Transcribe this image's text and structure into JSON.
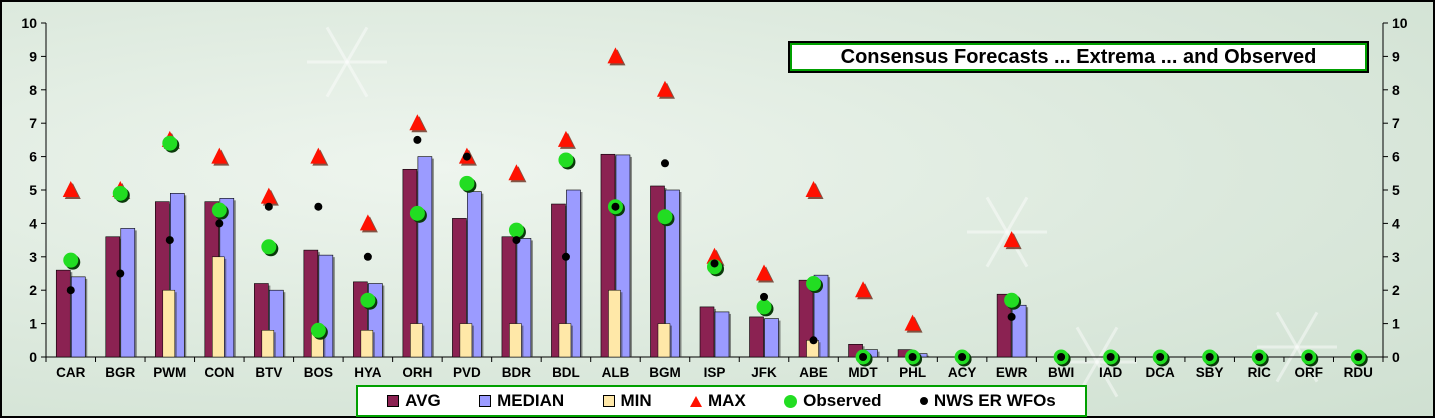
{
  "chart_data": {
    "type": "bar",
    "title": "Consensus Forecasts ... Extrema ... and Observed",
    "categories": [
      "CAR",
      "BGR",
      "PWM",
      "CON",
      "BTV",
      "BOS",
      "HYA",
      "ORH",
      "PVD",
      "BDR",
      "BDL",
      "ALB",
      "BGM",
      "ISP",
      "JFK",
      "ABE",
      "MDT",
      "PHL",
      "ACY",
      "EWR",
      "BWI",
      "IAD",
      "DCA",
      "SBY",
      "RIC",
      "ORF",
      "RDU"
    ],
    "ylim": [
      0,
      10
    ],
    "yticks": [
      "0",
      "1",
      "2",
      "3",
      "4",
      "5",
      "6",
      "7",
      "8",
      "9",
      "10"
    ],
    "series": [
      {
        "name": "AVG",
        "type": "bar",
        "color": "#8b2252",
        "values": [
          2.6,
          3.6,
          4.65,
          4.65,
          2.2,
          3.2,
          2.25,
          5.62,
          4.15,
          3.6,
          4.58,
          6.07,
          5.12,
          1.5,
          1.2,
          2.3,
          0.38,
          0.22,
          0,
          1.88,
          0,
          0,
          0,
          0,
          0,
          0,
          0
        ]
      },
      {
        "name": "MEDIAN",
        "type": "bar",
        "color": "#9b9bff",
        "values": [
          2.4,
          3.85,
          4.9,
          4.75,
          2.0,
          3.05,
          2.2,
          6.0,
          4.95,
          3.55,
          5.0,
          6.05,
          5.0,
          1.35,
          1.15,
          2.45,
          0.22,
          0.1,
          0,
          1.55,
          0,
          0,
          0,
          0,
          0,
          0,
          0
        ]
      },
      {
        "name": "MIN",
        "type": "bar",
        "color": "#ffe8a8",
        "values": [
          0,
          0,
          2.0,
          3.0,
          0.8,
          0.8,
          0.8,
          1.0,
          1.0,
          1.0,
          1.0,
          2.0,
          1.0,
          0,
          0,
          0.5,
          0,
          0,
          0,
          0,
          0,
          0,
          0,
          0,
          0,
          0,
          0
        ]
      },
      {
        "name": "MAX",
        "type": "marker",
        "color": "#ff1100",
        "values": [
          5.0,
          5.0,
          6.5,
          6.0,
          4.8,
          6.0,
          4.0,
          7.0,
          6.0,
          5.5,
          6.5,
          9.0,
          8.0,
          3.0,
          2.5,
          5.0,
          2.0,
          1.0,
          0,
          3.5,
          0,
          0,
          0,
          0,
          0,
          0,
          0
        ]
      },
      {
        "name": "Observed",
        "type": "marker",
        "color": "#22dd22",
        "values": [
          2.9,
          4.9,
          6.4,
          4.4,
          3.3,
          0.8,
          1.7,
          4.3,
          5.2,
          3.8,
          5.9,
          4.5,
          4.2,
          2.7,
          1.5,
          2.2,
          0,
          0,
          0,
          1.7,
          0,
          0,
          0,
          0,
          0,
          0,
          0
        ]
      },
      {
        "name": "NWS ER WFOs",
        "type": "marker",
        "color": "#000000",
        "values": [
          2.0,
          2.5,
          3.5,
          4.0,
          4.5,
          4.5,
          3.0,
          6.5,
          6.0,
          3.5,
          3.0,
          4.5,
          5.8,
          2.8,
          1.8,
          0.5,
          0,
          0,
          0,
          1.2,
          0,
          0,
          0,
          0,
          0,
          0,
          0
        ]
      }
    ],
    "grid": false,
    "legend_position": "bottom"
  }
}
